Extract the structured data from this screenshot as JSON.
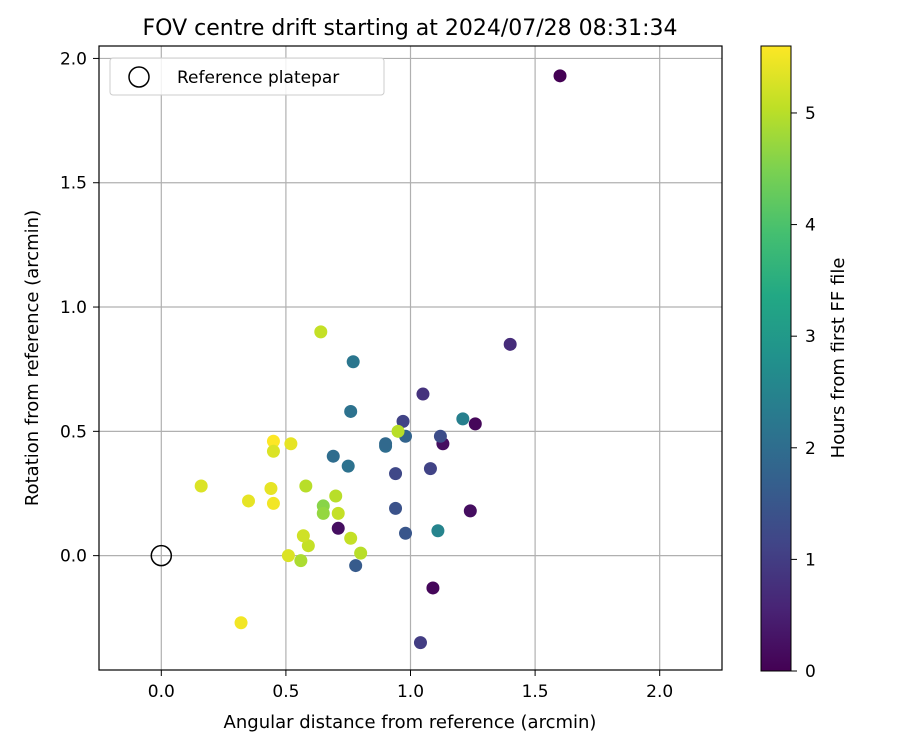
{
  "chart_data": {
    "type": "scatter",
    "title": "FOV centre drift starting at 2024/07/28 08:31:34",
    "xlabel": "Angular distance from reference (arcmin)",
    "ylabel": "Rotation from reference (arcmin)",
    "xlim": [
      -0.25,
      2.25
    ],
    "ylim": [
      -0.46,
      2.05
    ],
    "xticks": [
      "0.0",
      "0.5",
      "1.0",
      "1.5",
      "2.0"
    ],
    "yticks": [
      "0.0",
      "0.5",
      "1.0",
      "1.5",
      "2.0"
    ],
    "grid": true,
    "legend": {
      "position": "top-left",
      "entries": [
        "Reference platepar"
      ]
    },
    "reference_point": {
      "x": 0.0,
      "y": 0.0
    },
    "colorbar": {
      "label": "Hours from first FF file",
      "range": [
        0,
        5.6
      ],
      "ticks": [
        "0",
        "1",
        "2",
        "3",
        "4",
        "5"
      ]
    },
    "points": [
      {
        "x": 1.6,
        "y": 1.93,
        "h": 0.0
      },
      {
        "x": 1.4,
        "y": 0.85,
        "h": 0.7
      },
      {
        "x": 1.26,
        "y": 0.53,
        "h": 0.1
      },
      {
        "x": 1.13,
        "y": 0.45,
        "h": 0.2
      },
      {
        "x": 1.24,
        "y": 0.18,
        "h": 0.2
      },
      {
        "x": 1.09,
        "y": -0.13,
        "h": 0.1
      },
      {
        "x": 1.04,
        "y": -0.35,
        "h": 1.0
      },
      {
        "x": 0.71,
        "y": 0.11,
        "h": 0.2
      },
      {
        "x": 1.05,
        "y": 0.65,
        "h": 0.8
      },
      {
        "x": 0.97,
        "y": 0.54,
        "h": 1.1
      },
      {
        "x": 1.12,
        "y": 0.48,
        "h": 1.3
      },
      {
        "x": 1.08,
        "y": 0.35,
        "h": 1.1
      },
      {
        "x": 0.94,
        "y": 0.33,
        "h": 1.2
      },
      {
        "x": 0.94,
        "y": 0.19,
        "h": 1.4
      },
      {
        "x": 0.98,
        "y": 0.09,
        "h": 1.5
      },
      {
        "x": 0.78,
        "y": -0.04,
        "h": 1.6
      },
      {
        "x": 0.98,
        "y": 0.48,
        "h": 1.8
      },
      {
        "x": 0.9,
        "y": 0.44,
        "h": 2.0
      },
      {
        "x": 0.9,
        "y": 0.45,
        "h": 1.9
      },
      {
        "x": 1.21,
        "y": 0.55,
        "h": 2.4
      },
      {
        "x": 1.11,
        "y": 0.1,
        "h": 2.5
      },
      {
        "x": 0.77,
        "y": 0.78,
        "h": 2.2
      },
      {
        "x": 0.76,
        "y": 0.58,
        "h": 2.1
      },
      {
        "x": 0.69,
        "y": 0.4,
        "h": 2.0
      },
      {
        "x": 0.75,
        "y": 0.36,
        "h": 2.1
      },
      {
        "x": 0.65,
        "y": 0.2,
        "h": 4.6
      },
      {
        "x": 0.65,
        "y": 0.17,
        "h": 4.7
      },
      {
        "x": 0.95,
        "y": 0.5,
        "h": 5.0
      },
      {
        "x": 0.64,
        "y": 0.9,
        "h": 5.1
      },
      {
        "x": 0.7,
        "y": 0.24,
        "h": 5.0
      },
      {
        "x": 0.71,
        "y": 0.17,
        "h": 5.1
      },
      {
        "x": 0.58,
        "y": 0.28,
        "h": 5.0
      },
      {
        "x": 0.76,
        "y": 0.07,
        "h": 5.1
      },
      {
        "x": 0.8,
        "y": 0.01,
        "h": 5.0
      },
      {
        "x": 0.59,
        "y": 0.04,
        "h": 5.1
      },
      {
        "x": 0.56,
        "y": -0.02,
        "h": 4.9
      },
      {
        "x": 0.57,
        "y": 0.08,
        "h": 5.2
      },
      {
        "x": 0.51,
        "y": 0.0,
        "h": 5.3
      },
      {
        "x": 0.52,
        "y": 0.45,
        "h": 5.4
      },
      {
        "x": 0.45,
        "y": 0.46,
        "h": 5.6
      },
      {
        "x": 0.45,
        "y": 0.42,
        "h": 5.3
      },
      {
        "x": 0.44,
        "y": 0.27,
        "h": 5.4
      },
      {
        "x": 0.45,
        "y": 0.21,
        "h": 5.5
      },
      {
        "x": 0.35,
        "y": 0.22,
        "h": 5.4
      },
      {
        "x": 0.16,
        "y": 0.28,
        "h": 5.3
      },
      {
        "x": 0.32,
        "y": -0.27,
        "h": 5.5
      }
    ]
  }
}
